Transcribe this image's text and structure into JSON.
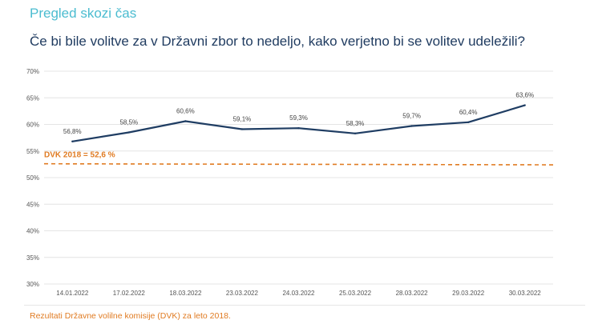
{
  "header": {
    "section_title": "Pregled skozi čas",
    "question": "Če bi bile volitve za v Državni zbor to nedeljo, kako verjetno bi se volitev udeležili?"
  },
  "footnote": "Rezultati Državne volilne komisije (DVK) za leto 2018.",
  "chart_data": {
    "type": "line",
    "categories": [
      "14.01.2022",
      "17.02.2022",
      "18.03.2022",
      "23.03.2022",
      "24.03.2022",
      "25.03.2022",
      "28.03.2022",
      "29.03.2022",
      "30.03.2022"
    ],
    "series": [
      {
        "values": [
          56.8,
          58.5,
          60.6,
          59.1,
          59.3,
          58.3,
          59.7,
          60.4,
          63.6
        ],
        "color": "#1f3d63"
      }
    ],
    "data_labels": [
      "56,8%",
      "58,5%",
      "60,6%",
      "59,1%",
      "59,3%",
      "58,3%",
      "59,7%",
      "60,4%",
      "63,6%"
    ],
    "reference_line": {
      "label": "DVK 2018 = 52,6 %",
      "start": 52.6,
      "end": 52.4,
      "color": "#e07b22",
      "style": "dashed"
    },
    "ylim": [
      30,
      70
    ],
    "yticks": [
      30,
      35,
      40,
      45,
      50,
      55,
      60,
      65,
      70
    ],
    "ytick_labels": [
      "30%",
      "35%",
      "40%",
      "45%",
      "50%",
      "55%",
      "60%",
      "65%",
      "70%"
    ],
    "grid": true,
    "xlabel": "",
    "ylabel": ""
  }
}
